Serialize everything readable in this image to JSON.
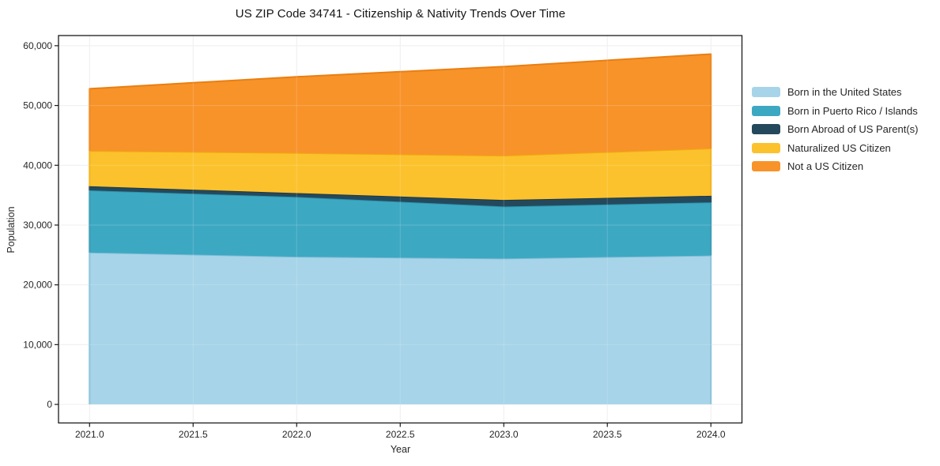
{
  "chart_data": {
    "type": "area",
    "stacked": true,
    "title": "US ZIP Code 34741 - Citizenship & Nativity Trends Over Time",
    "xlabel": "Year",
    "ylabel": "Population",
    "x": [
      2021,
      2022,
      2023,
      2024
    ],
    "series": [
      {
        "name": "Born in the United States",
        "values": [
          25400,
          24700,
          24400,
          24900
        ],
        "color": "#a7d4e8",
        "line_color": "#82bdd8"
      },
      {
        "name": "Born in Puerto Rico / Islands",
        "values": [
          10400,
          10000,
          8700,
          8900
        ],
        "color": "#3da8c2",
        "line_color": "#2b93ad"
      },
      {
        "name": "Born Abroad of US Parent(s)",
        "values": [
          700,
          650,
          1100,
          1100
        ],
        "color": "#25495c",
        "line_color": "#1b3949"
      },
      {
        "name": "Naturalized US Citizen",
        "values": [
          5900,
          6700,
          7400,
          7900
        ],
        "color": "#fcc22d",
        "line_color": "#f0ad0d"
      },
      {
        "name": "Not a US Citizen",
        "values": [
          10400,
          12750,
          14900,
          15800
        ],
        "color": "#f8932a",
        "line_color": "#e97f10"
      }
    ],
    "totals": [
      52800,
      54800,
      56500,
      58600
    ],
    "x_ticks": {
      "values": [
        2021.0,
        2021.5,
        2022.0,
        2022.5,
        2023.0,
        2023.5,
        2024.0
      ],
      "labels": [
        "2021.0",
        "2021.5",
        "2022.0",
        "2022.5",
        "2023.0",
        "2023.5",
        "2024.0"
      ]
    },
    "y_ticks": {
      "values": [
        0,
        10000,
        20000,
        30000,
        40000,
        50000,
        60000
      ],
      "labels": [
        "0",
        "10,000",
        "20,000",
        "30,000",
        "40,000",
        "50,000",
        "60,000"
      ]
    },
    "x_range": [
      2020.85,
      2024.15
    ],
    "y_range": [
      -3100,
      61700
    ],
    "grid": true,
    "legend": {
      "position": "right-top"
    },
    "colors": {
      "frame": "#1a1a1a",
      "gridline": "#ececec",
      "tick_label": "#262626",
      "background": "#ffffff"
    }
  }
}
